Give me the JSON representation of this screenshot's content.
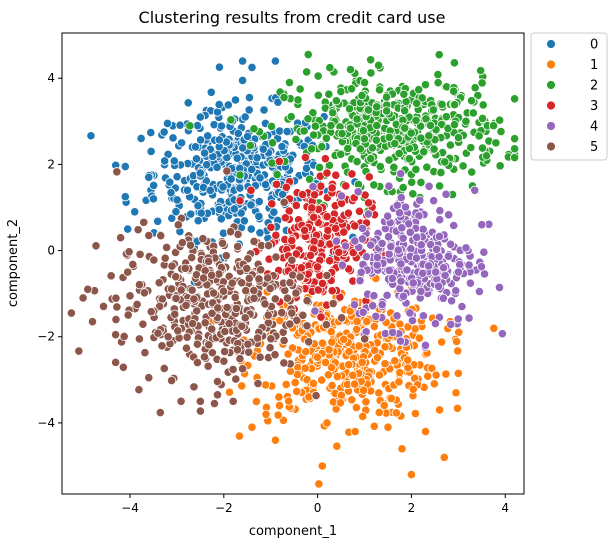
{
  "chart_data": {
    "type": "scatter",
    "title": "Clustering results from credit card use",
    "xlabel": "component_1",
    "ylabel": "component_2",
    "xlim": [
      -5.45,
      4.4
    ],
    "ylim": [
      -5.65,
      5.05
    ],
    "x_ticks": [
      -4,
      -2,
      0,
      2,
      4
    ],
    "y_ticks": [
      -4,
      -2,
      0,
      2,
      4
    ],
    "grid": false,
    "legend_placement": "outside-top-right",
    "series": [
      {
        "name": "0",
        "color": "#1f77b4",
        "center": [
          -1.7,
          1.8
        ],
        "spread": [
          0.9,
          0.75
        ],
        "count": 420,
        "outliers": [
          [
            -1.6,
            4.4
          ],
          [
            -1.6,
            3.95
          ],
          [
            -1.4,
            4.25
          ],
          [
            -0.9,
            4.4
          ],
          [
            -4.1,
            1.95
          ],
          [
            -4.1,
            1.25
          ],
          [
            -3.9,
            0.9
          ],
          [
            -4.05,
            0.5
          ],
          [
            -3.2,
            2.95
          ],
          [
            -3.6,
            1.7
          ],
          [
            -3.55,
            2.3
          ],
          [
            -2.9,
            2.5
          ],
          [
            -3.5,
            1.2
          ],
          [
            -2.5,
            3.1
          ]
        ]
      },
      {
        "name": "1",
        "color": "#ff7f0e",
        "center": [
          0.6,
          -2.4
        ],
        "spread": [
          1.0,
          0.75
        ],
        "count": 420,
        "outliers": [
          [
            0.1,
            -5.0
          ],
          [
            2.0,
            -5.2
          ],
          [
            2.7,
            -4.8
          ],
          [
            1.8,
            -4.6
          ],
          [
            0.8,
            -4.2
          ],
          [
            -0.9,
            -4.4
          ],
          [
            -1.4,
            -4.1
          ],
          [
            2.3,
            -4.2
          ],
          [
            2.6,
            -3.7
          ],
          [
            -1.1,
            -3.8
          ],
          [
            3.0,
            -2.85
          ],
          [
            2.95,
            -3.3
          ],
          [
            0.2,
            -4.0
          ],
          [
            1.5,
            -4.1
          ]
        ]
      },
      {
        "name": "2",
        "color": "#2ca02c",
        "center": [
          1.6,
          2.8
        ],
        "spread": [
          1.15,
          0.6
        ],
        "count": 480,
        "outliers": [
          [
            -0.2,
            4.55
          ],
          [
            0.7,
            4.2
          ],
          [
            1.3,
            4.3
          ],
          [
            2.3,
            3.85
          ],
          [
            3.8,
            2.5
          ],
          [
            3.6,
            2.2
          ],
          [
            3.75,
            2.9
          ],
          [
            2.6,
            1.5
          ],
          [
            -0.6,
            3.9
          ],
          [
            1.0,
            3.9
          ],
          [
            3.3,
            1.5
          ],
          [
            2.9,
            3.7
          ]
        ]
      },
      {
        "name": "3",
        "color": "#d62728",
        "center": [
          0.0,
          0.2
        ],
        "spread": [
          0.55,
          0.75
        ],
        "count": 260,
        "outliers": [
          [
            -0.6,
            1.2
          ],
          [
            0.6,
            1.5
          ],
          [
            -0.9,
            -0.6
          ],
          [
            0.9,
            -0.7
          ],
          [
            0.2,
            1.8
          ],
          [
            -0.4,
            -0.9
          ]
        ]
      },
      {
        "name": "4",
        "color": "#9467bd",
        "center": [
          2.1,
          -0.2
        ],
        "spread": [
          0.65,
          0.8
        ],
        "count": 300,
        "outliers": [
          [
            3.45,
            -0.95
          ],
          [
            3.5,
            0.6
          ],
          [
            3.35,
            1.4
          ],
          [
            2.3,
            -2.2
          ],
          [
            1.6,
            -1.9
          ],
          [
            3.0,
            -0.5
          ]
        ]
      },
      {
        "name": "5",
        "color": "#8c564b",
        "center": [
          -2.3,
          -1.2
        ],
        "spread": [
          1.0,
          0.85
        ],
        "count": 420,
        "outliers": [
          [
            -5.25,
            -1.45
          ],
          [
            -4.9,
            -0.9
          ],
          [
            -4.8,
            -1.65
          ],
          [
            -5.0,
            -1.1
          ],
          [
            -4.3,
            -1.6
          ],
          [
            -4.2,
            0.3
          ],
          [
            -4.05,
            -0.5
          ],
          [
            -3.8,
            -2.05
          ],
          [
            -3.6,
            -2.95
          ],
          [
            -2.5,
            -3.5
          ],
          [
            -2.2,
            -3.55
          ],
          [
            -4.0,
            -1.05
          ],
          [
            -3.6,
            0.35
          ],
          [
            -1.8,
            -3.5
          ]
        ]
      }
    ]
  }
}
